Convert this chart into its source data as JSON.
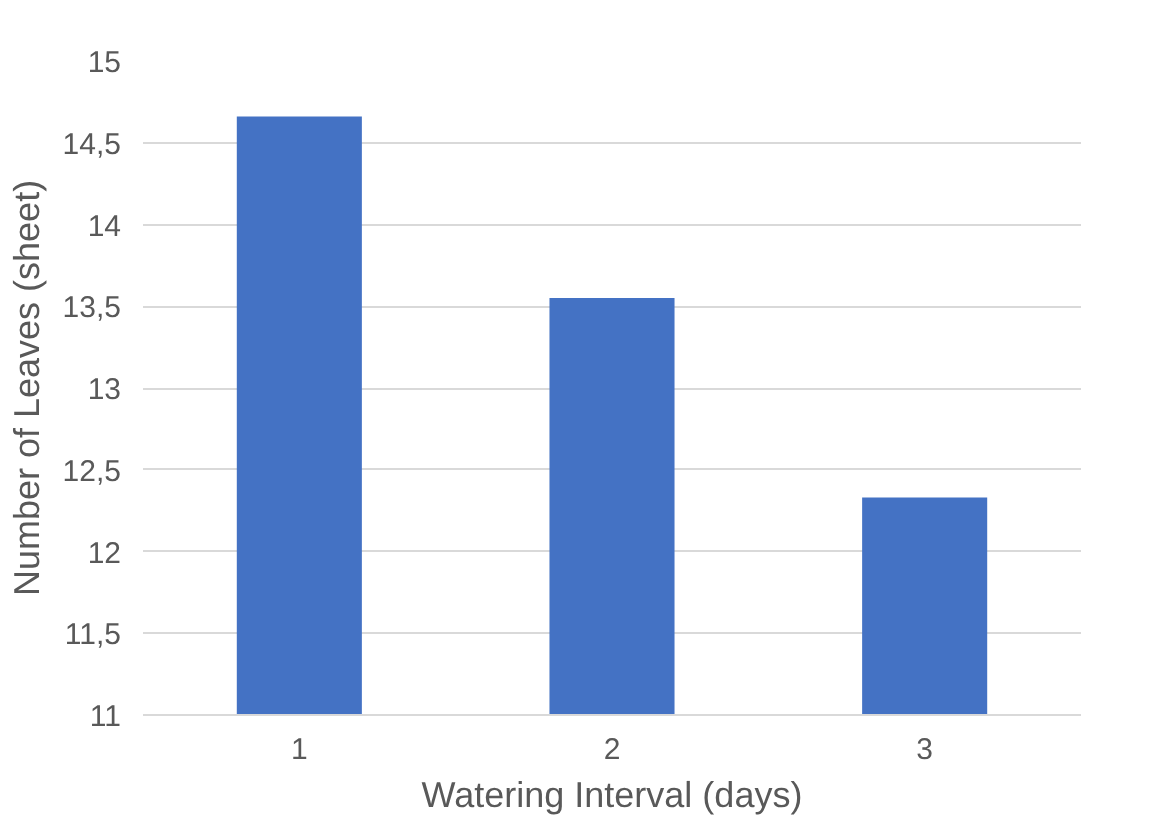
{
  "chart_data": {
    "type": "bar",
    "xlabel": "Watering Interval (days)",
    "ylabel": "Number of Leaves (sheet)",
    "categories": [
      "1",
      "2",
      "3"
    ],
    "values": [
      14.66,
      13.55,
      12.33
    ],
    "color": "#4472c4",
    "ylim": [
      11,
      15
    ],
    "yticks": [
      11,
      {
        "value": 11.5,
        "label": "11,5"
      },
      12,
      {
        "value": 12.5,
        "label": "12,5"
      },
      13,
      {
        "value": 13.5,
        "label": "13,5"
      },
      14,
      {
        "value": 14.5,
        "label": "14,5"
      },
      15
    ],
    "grid": "y"
  }
}
